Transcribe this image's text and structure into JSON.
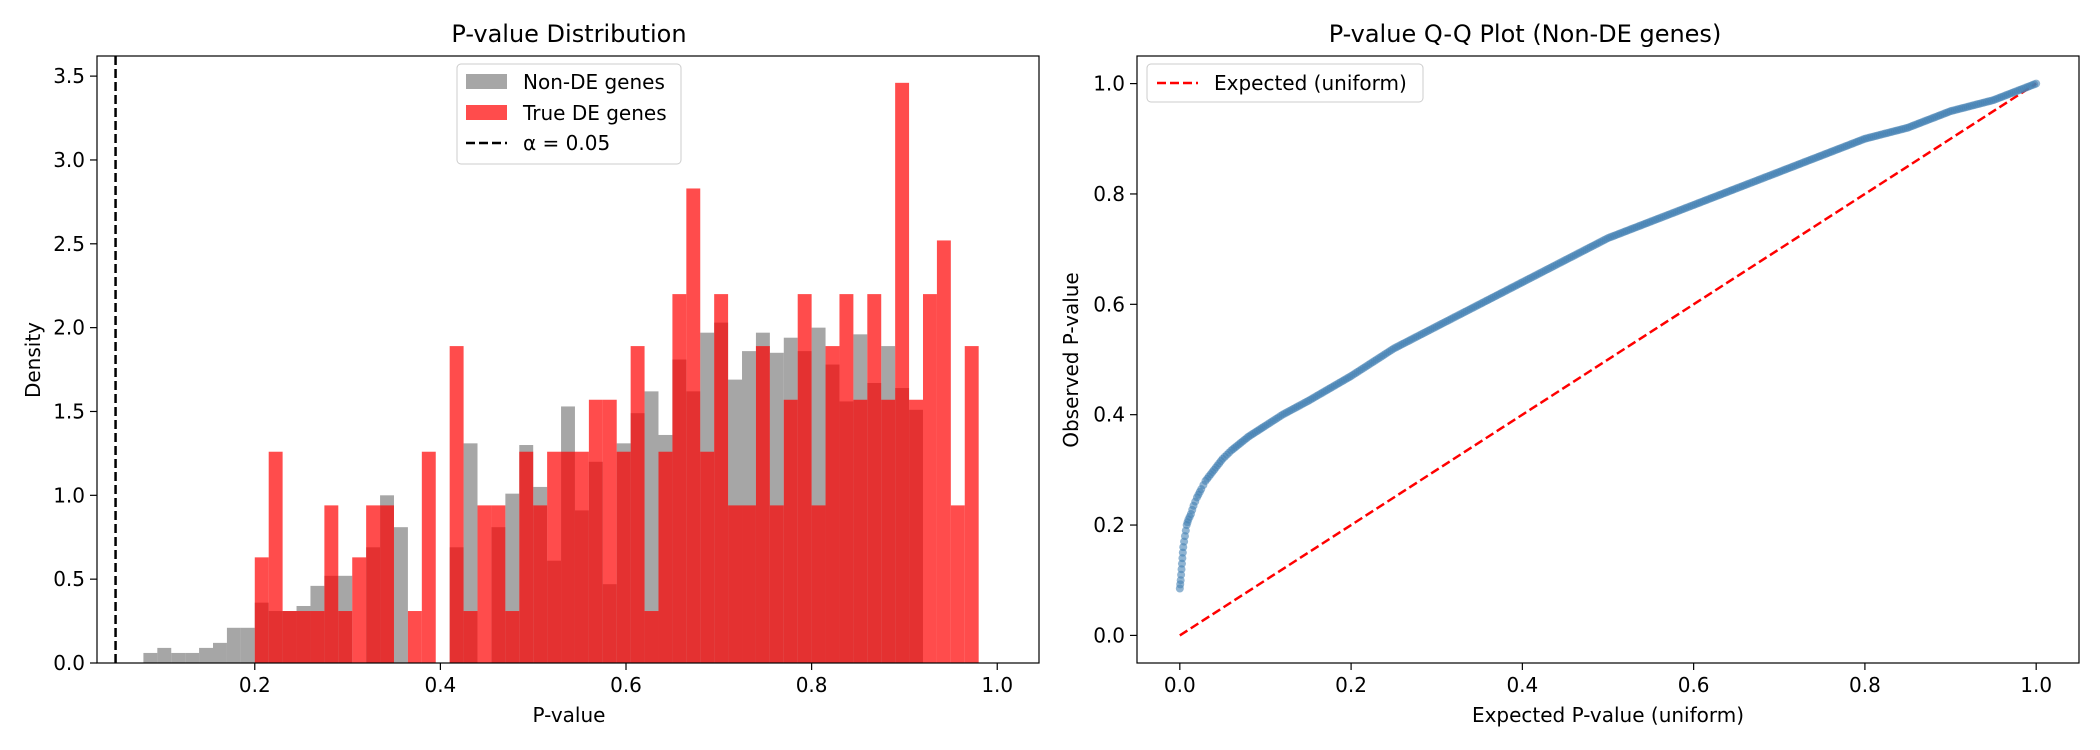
{
  "chart_data": [
    {
      "type": "histogram",
      "title": "P-value Distribution",
      "xlabel": "P-value",
      "ylabel": "Density",
      "xlim": [
        0.03,
        1.045
      ],
      "ylim": [
        0,
        3.62
      ],
      "xticks": [
        "0.2",
        "0.4",
        "0.6",
        "0.8",
        "1.0"
      ],
      "xtick_values": [
        0.2,
        0.4,
        0.6,
        0.8,
        1.0
      ],
      "yticks": [
        "0.0",
        "0.5",
        "1.0",
        "1.5",
        "2.0",
        "2.5",
        "3.0",
        "3.5"
      ],
      "ytick_values": [
        0.0,
        0.5,
        1.0,
        1.5,
        2.0,
        2.5,
        3.0,
        3.5
      ],
      "grid": false,
      "legend_position": "top-center",
      "bin_width": 0.015,
      "series": [
        {
          "name": "Non-DE genes",
          "color": "#808080",
          "opacity": 0.7,
          "bin_start": 0.08,
          "values": [
            0.06,
            0.09,
            0.06,
            0.06,
            0.09,
            0.12,
            0.21,
            0.21,
            0.36,
            0.31,
            0.31,
            0.34,
            0.46,
            0.52,
            0.52,
            0.0,
            0.69,
            1.0,
            0.81,
            0.0,
            0.0,
            0.0,
            0.69,
            1.31,
            0.0,
            0.81,
            1.01,
            1.3,
            1.05,
            0.61,
            1.53,
            0.91,
            1.2,
            0.47,
            1.31,
            1.49,
            1.62,
            1.36,
            1.81,
            1.62,
            1.97,
            2.03,
            1.69,
            1.86,
            1.97,
            1.85,
            1.94,
            1.86,
            2.0,
            1.78,
            1.56,
            1.96,
            1.67,
            1.89,
            1.64,
            1.51
          ]
        },
        {
          "name": "True DE genes",
          "color": "#ff0000",
          "opacity": 0.7,
          "bin_start": 0.2,
          "values": [
            0.63,
            1.26,
            0.31,
            0.31,
            0.31,
            0.94,
            0.31,
            0.63,
            0.94,
            0.94,
            0.0,
            0.31,
            1.26,
            0.0,
            1.89,
            0.31,
            0.94,
            0.94,
            0.31,
            1.26,
            0.94,
            1.26,
            1.26,
            1.26,
            1.57,
            1.57,
            1.26,
            1.89,
            0.31,
            1.26,
            2.2,
            2.83,
            1.26,
            2.2,
            0.94,
            0.94,
            1.89,
            0.94,
            1.57,
            2.2,
            0.94,
            1.89,
            2.2,
            1.57,
            2.2,
            1.57,
            3.46,
            1.57,
            2.2,
            2.52,
            0.94,
            1.89
          ]
        }
      ],
      "vline": {
        "name": "α = 0.05",
        "x": 0.05,
        "color": "#000000",
        "style": "dashed"
      }
    },
    {
      "type": "scatter",
      "title": "P-value Q-Q Plot (Non-DE genes)",
      "xlabel": "Expected P-value (uniform)",
      "ylabel": "Observed P-value",
      "xlim": [
        -0.05,
        1.05
      ],
      "ylim": [
        -0.05,
        1.05
      ],
      "xticks": [
        "0.0",
        "0.2",
        "0.4",
        "0.6",
        "0.8",
        "1.0"
      ],
      "xtick_values": [
        0.0,
        0.2,
        0.4,
        0.6,
        0.8,
        1.0
      ],
      "yticks": [
        "0.0",
        "0.2",
        "0.4",
        "0.6",
        "0.8",
        "1.0"
      ],
      "ytick_values": [
        0.0,
        0.2,
        0.4,
        0.6,
        0.8,
        1.0
      ],
      "grid": false,
      "legend_position": "top-left",
      "series": [
        {
          "name": "",
          "color": "#4682b4",
          "x": [
            0.0,
            0.001,
            0.002,
            0.003,
            0.004,
            0.006,
            0.008,
            0.01,
            0.013,
            0.016,
            0.02,
            0.025,
            0.03,
            0.04,
            0.05,
            0.06,
            0.08,
            0.1,
            0.12,
            0.15,
            0.2,
            0.25,
            0.3,
            0.35,
            0.4,
            0.45,
            0.5,
            0.55,
            0.6,
            0.65,
            0.7,
            0.75,
            0.8,
            0.85,
            0.9,
            0.95,
            1.0
          ],
          "y": [
            0.085,
            0.1,
            0.12,
            0.14,
            0.16,
            0.18,
            0.2,
            0.21,
            0.22,
            0.235,
            0.25,
            0.265,
            0.28,
            0.3,
            0.32,
            0.335,
            0.36,
            0.38,
            0.4,
            0.425,
            0.47,
            0.52,
            0.56,
            0.6,
            0.64,
            0.68,
            0.72,
            0.75,
            0.78,
            0.81,
            0.84,
            0.87,
            0.9,
            0.92,
            0.95,
            0.97,
            1.0
          ]
        }
      ],
      "reference_line": {
        "name": "Expected (uniform)",
        "color": "#ff0000",
        "style": "dashed",
        "x": [
          0.0,
          1.0
        ],
        "y": [
          0.0,
          1.0
        ]
      }
    }
  ]
}
